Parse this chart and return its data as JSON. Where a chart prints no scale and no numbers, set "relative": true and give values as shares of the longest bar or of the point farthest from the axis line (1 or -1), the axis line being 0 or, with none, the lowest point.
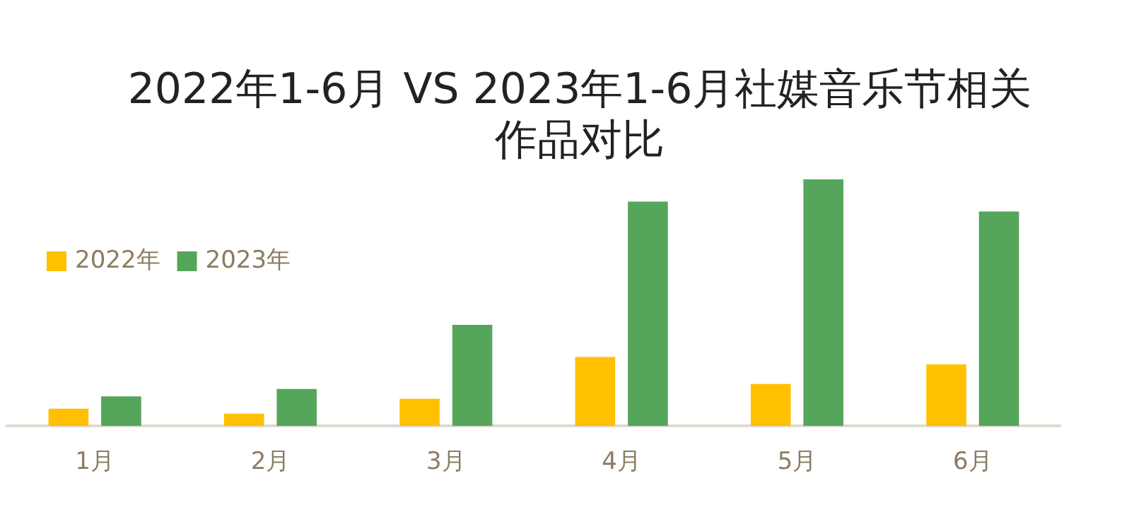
{
  "chart_data": {
    "type": "bar",
    "title": "2022年1-6月 VS 2023年1-6月社媒音乐节相关作品对比",
    "relative": true,
    "legend": "top left",
    "grid": false,
    "categories": [
      "1月",
      "2月",
      "3月",
      "4月",
      "5月",
      "6月"
    ],
    "series": [
      {
        "name": "2022年",
        "color": "#ffc000",
        "values": [
          0.07,
          0.05,
          0.11,
          0.28,
          0.17,
          0.25
        ]
      },
      {
        "name": "2023年",
        "color": "#55a65a",
        "values": [
          0.12,
          0.15,
          0.41,
          0.91,
          1,
          0.87
        ]
      }
    ]
  }
}
